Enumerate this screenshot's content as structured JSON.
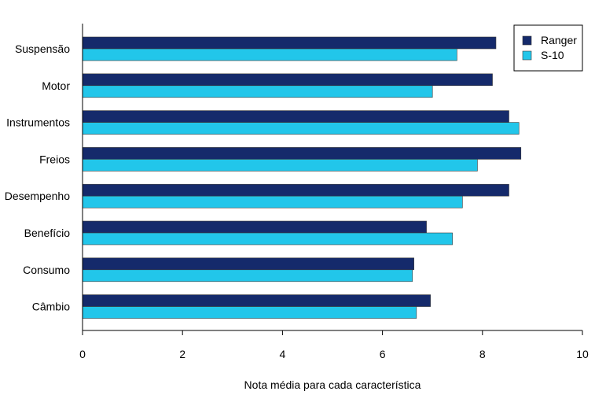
{
  "chart_data": {
    "type": "bar",
    "orientation": "horizontal",
    "categories": [
      "Suspensão",
      "Motor",
      "Instrumentos",
      "Freios",
      "Desempenho",
      "Benefício",
      "Consumo",
      "Câmbio"
    ],
    "series": [
      {
        "name": "Ranger",
        "color": "#152a6b",
        "values": [
          8.27,
          8.2,
          8.53,
          8.77,
          8.53,
          6.88,
          6.63,
          6.96
        ]
      },
      {
        "name": "S-10",
        "color": "#22c6ea",
        "values": [
          7.49,
          7.0,
          8.73,
          7.9,
          7.6,
          7.4,
          6.6,
          6.68
        ]
      }
    ],
    "xlabel": "Nota média para cada característica",
    "ylabel": "",
    "xlim": [
      0,
      10
    ],
    "xticks": [
      "0",
      "2",
      "4",
      "6",
      "8",
      "10"
    ],
    "grid": false,
    "legend_position": "top-right"
  }
}
